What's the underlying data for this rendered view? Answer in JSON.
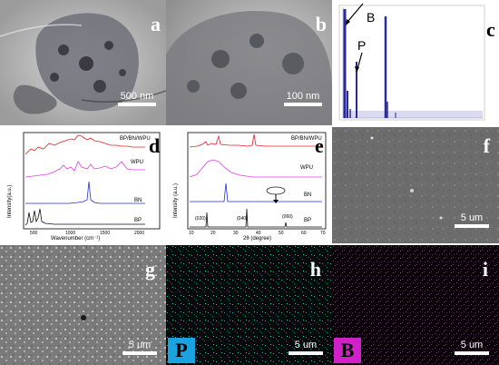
{
  "panels": {
    "a": {
      "letter": "a",
      "scale": "500 nm"
    },
    "b": {
      "letter": "b",
      "scale": "100 nm"
    },
    "c": {
      "letter": "c",
      "peak_b": "B",
      "peak_p": "P"
    },
    "d": {
      "letter": "d",
      "ylabel": "Intensity(a.u.)",
      "xlabel": "Wavenumber (cm⁻¹)",
      "ticks": [
        "500",
        "1000",
        "1500",
        "2000"
      ],
      "series": [
        {
          "name": "BP/BN/WPU",
          "color": "#e8202a"
        },
        {
          "name": "WPU",
          "color": "#e040e0"
        },
        {
          "name": "BN",
          "color": "#2030d8"
        },
        {
          "name": "BP",
          "color": "#111111"
        }
      ]
    },
    "e": {
      "letter": "e",
      "ylabel": "Intensity (a.u.)",
      "xlabel": "2θ (degree)",
      "ticks": [
        "10",
        "20",
        "30",
        "40",
        "50",
        "60",
        "70"
      ],
      "peaks": [
        "(020)",
        "(040)",
        "(060)"
      ],
      "series": [
        {
          "name": "BP/BN/WPU",
          "color": "#e8202a"
        },
        {
          "name": "WPU",
          "color": "#e040e0"
        },
        {
          "name": "BN",
          "color": "#2030d8"
        },
        {
          "name": "BP",
          "color": "#111111"
        }
      ]
    },
    "f": {
      "letter": "f",
      "scale": "5 um"
    },
    "g": {
      "letter": "g",
      "scale": "5 um"
    },
    "h": {
      "letter": "h",
      "scale": "5 um",
      "element": "P",
      "element_color": "#1aa3e0"
    },
    "i": {
      "letter": "i",
      "scale": "5 um",
      "element": "B",
      "element_color": "#d020c8"
    }
  }
}
